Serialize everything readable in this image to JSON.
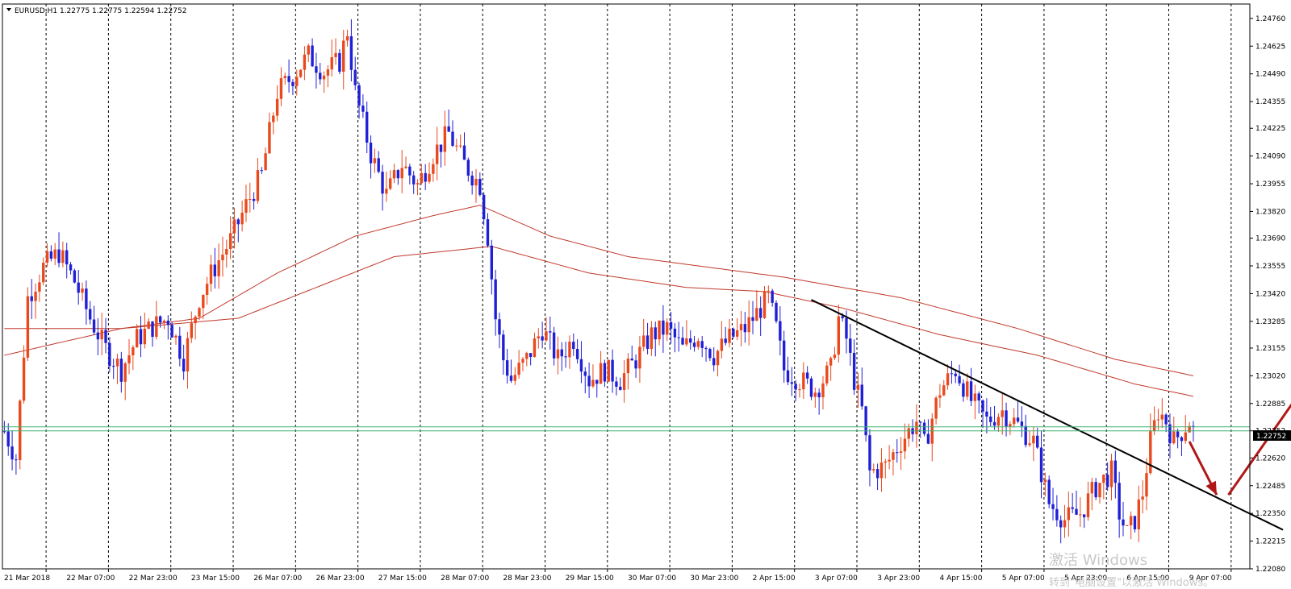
{
  "symbol_header": "EURUSD,H1  1.22775 1.22775 1.22594 1.22752",
  "current_price_label": "1.22752",
  "watermark": {
    "line1": "激活 Windows",
    "line2": "转到\"电脑设置\"以激活 Windows。"
  },
  "colors": {
    "bull": "#e8491d",
    "bear": "#1f1fd6",
    "ma": "#c0392b",
    "trendline": "#000000",
    "arrow": "#b01818",
    "price_line": "#3cb371",
    "price_tag_bg": "#000000",
    "price_tag_text": "#ffffff"
  },
  "chart_data": {
    "type": "candlestick",
    "symbol": "EURUSD",
    "timeframe": "H1",
    "ylim": [
      1.2208,
      1.2483
    ],
    "y_ticks": [
      "1.24760",
      "1.24625",
      "1.24490",
      "1.24355",
      "1.24225",
      "1.24090",
      "1.23955",
      "1.23820",
      "1.23690",
      "1.23555",
      "1.23420",
      "1.23285",
      "1.23155",
      "1.23020",
      "1.22885",
      "1.22752",
      "1.22620",
      "1.22485",
      "1.22350",
      "1.22215",
      "1.22080"
    ],
    "x_ticks": [
      "21 Mar 2018",
      "22 Mar 07:00",
      "22 Mar 23:00",
      "23 Mar 15:00",
      "26 Mar 07:00",
      "26 Mar 23:00",
      "27 Mar 15:00",
      "28 Mar 07:00",
      "28 Mar 23:00",
      "29 Mar 15:00",
      "30 Mar 07:00",
      "30 Mar 23:00",
      "2 Apr 15:00",
      "3 Apr 07:00",
      "3 Apr 23:00",
      "4 Apr 15:00",
      "5 Apr 07:00",
      "5 Apr 23:00",
      "6 Apr 15:00",
      "9 Apr 07:00"
    ],
    "close_path": [
      [
        0,
        1.2275
      ],
      [
        3,
        1.2262
      ],
      [
        6,
        1.234
      ],
      [
        10,
        1.2355
      ],
      [
        14,
        1.2362
      ],
      [
        18,
        1.2348
      ],
      [
        22,
        1.233
      ],
      [
        26,
        1.2315
      ],
      [
        30,
        1.2305
      ],
      [
        34,
        1.232
      ],
      [
        38,
        1.2326
      ],
      [
        42,
        1.233
      ],
      [
        46,
        1.231
      ],
      [
        50,
        1.234
      ],
      [
        54,
        1.2355
      ],
      [
        58,
        1.2368
      ],
      [
        62,
        1.2385
      ],
      [
        66,
        1.24
      ],
      [
        70,
        1.244
      ],
      [
        74,
        1.2448
      ],
      [
        78,
        1.2458
      ],
      [
        82,
        1.245
      ],
      [
        86,
        1.2455
      ],
      [
        88,
        1.247
      ],
      [
        90,
        1.244
      ],
      [
        94,
        1.241
      ],
      [
        98,
        1.239
      ],
      [
        102,
        1.2405
      ],
      [
        106,
        1.2395
      ],
      [
        110,
        1.241
      ],
      [
        114,
        1.242
      ],
      [
        118,
        1.2405
      ],
      [
        122,
        1.2395
      ],
      [
        124,
        1.237
      ],
      [
        126,
        1.233
      ],
      [
        128,
        1.231
      ],
      [
        130,
        1.23
      ],
      [
        134,
        1.231
      ],
      [
        138,
        1.2325
      ],
      [
        142,
        1.231
      ],
      [
        146,
        1.232
      ],
      [
        150,
        1.23
      ],
      [
        154,
        1.2305
      ],
      [
        158,
        1.23
      ],
      [
        162,
        1.231
      ],
      [
        166,
        1.2322
      ],
      [
        170,
        1.2325
      ],
      [
        174,
        1.2315
      ],
      [
        178,
        1.2322
      ],
      [
        182,
        1.2312
      ],
      [
        186,
        1.232
      ],
      [
        190,
        1.2325
      ],
      [
        194,
        1.2335
      ],
      [
        196,
        1.234
      ],
      [
        198,
        1.2325
      ],
      [
        200,
        1.2305
      ],
      [
        204,
        1.23
      ],
      [
        208,
        1.2295
      ],
      [
        212,
        1.2305
      ],
      [
        214,
        1.233
      ],
      [
        216,
        1.232
      ],
      [
        218,
        1.23
      ],
      [
        220,
        1.2285
      ],
      [
        222,
        1.2255
      ],
      [
        226,
        1.2258
      ],
      [
        230,
        1.227
      ],
      [
        234,
        1.228
      ],
      [
        236,
        1.2268
      ],
      [
        240,
        1.2295
      ],
      [
        244,
        1.2305
      ],
      [
        248,
        1.229
      ],
      [
        252,
        1.228
      ],
      [
        256,
        1.2285
      ],
      [
        260,
        1.2278
      ],
      [
        264,
        1.227
      ],
      [
        266,
        1.2255
      ],
      [
        268,
        1.224
      ],
      [
        272,
        1.2232
      ],
      [
        276,
        1.2235
      ],
      [
        280,
        1.2248
      ],
      [
        284,
        1.2255
      ],
      [
        286,
        1.2235
      ],
      [
        288,
        1.2225
      ],
      [
        290,
        1.2232
      ],
      [
        292,
        1.2245
      ],
      [
        294,
        1.227
      ],
      [
        296,
        1.2285
      ],
      [
        298,
        1.228
      ],
      [
        300,
        1.227
      ],
      [
        302,
        1.2275
      ],
      [
        304,
        1.228
      ],
      [
        305,
        1.2275
      ]
    ],
    "ma_fast": [
      [
        0,
        1.2312
      ],
      [
        30,
        1.2325
      ],
      [
        60,
        1.233
      ],
      [
        80,
        1.2345
      ],
      [
        100,
        1.236
      ],
      [
        125,
        1.2365
      ],
      [
        150,
        1.2352
      ],
      [
        175,
        1.2345
      ],
      [
        195,
        1.2343
      ],
      [
        215,
        1.2335
      ],
      [
        240,
        1.2322
      ],
      [
        265,
        1.2312
      ],
      [
        290,
        1.2298
      ],
      [
        305,
        1.2292
      ]
    ],
    "ma_slow": [
      [
        0,
        1.2325
      ],
      [
        30,
        1.2325
      ],
      [
        50,
        1.233
      ],
      [
        70,
        1.2352
      ],
      [
        90,
        1.237
      ],
      [
        110,
        1.238
      ],
      [
        122,
        1.2385
      ],
      [
        140,
        1.237
      ],
      [
        160,
        1.236
      ],
      [
        180,
        1.2355
      ],
      [
        200,
        1.235
      ],
      [
        230,
        1.234
      ],
      [
        260,
        1.2325
      ],
      [
        285,
        1.231
      ],
      [
        305,
        1.2302
      ]
    ],
    "trendline": [
      [
        207,
        1.2339
      ],
      [
        328,
        1.2227
      ]
    ],
    "arrow_down": [
      [
        304,
        1.227
      ],
      [
        311,
        1.2244
      ]
    ],
    "arrow_up": [
      [
        314,
        1.2244
      ],
      [
        342,
        1.232
      ]
    ]
  }
}
